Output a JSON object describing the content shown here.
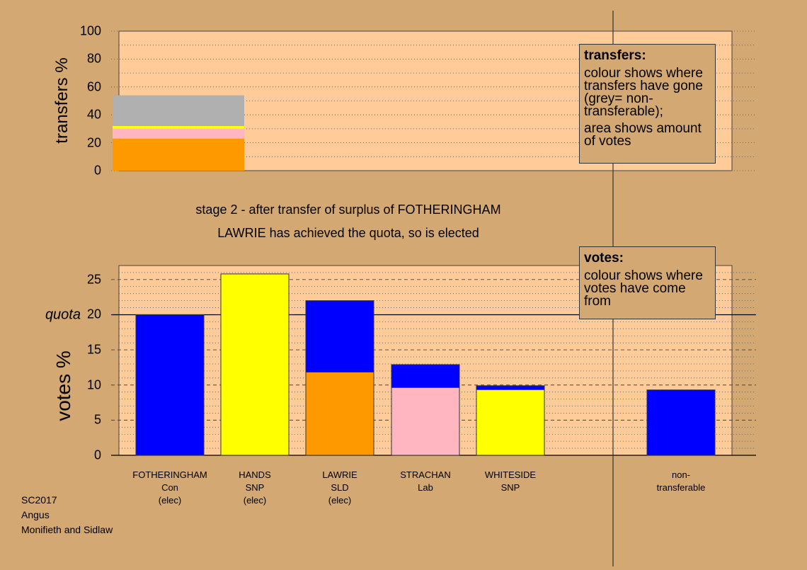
{
  "chart_data": [
    {
      "type": "bar",
      "stacked": true,
      "ylabel": "transfers %",
      "ylim": [
        0,
        100
      ],
      "yticks": [
        0,
        20,
        40,
        60,
        80,
        100
      ],
      "grid": "dotted",
      "bars": [
        {
          "segments": [
            {
              "value": 23,
              "color": "#ff9900"
            },
            {
              "value": 7,
              "color": "#ffb6c1"
            },
            {
              "value": 2,
              "color": "#ffff00"
            },
            {
              "value": 22,
              "color": "#b0b0b0"
            }
          ]
        }
      ],
      "legend": {
        "title": "transfers:",
        "lines": [
          "colour shows where transfers have gone (grey= non-transferable);",
          "area shows amount of votes"
        ],
        "placement": "top-right"
      }
    },
    {
      "type": "bar",
      "stacked": true,
      "ylabel": "votes %",
      "ylim": [
        0,
        27
      ],
      "yticks": [
        0,
        5,
        10,
        15,
        20,
        25
      ],
      "quota": 20,
      "quota_label": "quota",
      "grid": "dotted",
      "categories": [
        [
          "FOTHERINGHAM",
          "Con",
          "(elec)"
        ],
        [
          "HANDS",
          "SNP",
          "(elec)"
        ],
        [
          "LAWRIE",
          "SLD",
          "(elec)"
        ],
        [
          "STRACHAN",
          "Lab",
          ""
        ],
        [
          "WHITESIDE",
          "SNP",
          ""
        ],
        [
          "non-",
          "transferable",
          ""
        ]
      ],
      "bars": [
        {
          "segments": [
            {
              "value": 20.0,
              "color": "#0000ff"
            }
          ]
        },
        {
          "segments": [
            {
              "value": 25.8,
              "color": "#ffff00"
            }
          ]
        },
        {
          "segments": [
            {
              "value": 11.8,
              "color": "#ff9900"
            },
            {
              "value": 10.2,
              "color": "#0000ff"
            }
          ]
        },
        {
          "segments": [
            {
              "value": 9.6,
              "color": "#ffb6c1"
            },
            {
              "value": 3.3,
              "color": "#0000ff"
            }
          ]
        },
        {
          "segments": [
            {
              "value": 9.3,
              "color": "#ffff00"
            },
            {
              "value": 0.6,
              "color": "#0000ff"
            }
          ]
        },
        {
          "segments": [
            {
              "value": 9.3,
              "color": "#0000ff"
            }
          ]
        }
      ],
      "legend": {
        "title": "votes:",
        "lines": [
          "colour shows where votes have come from"
        ],
        "placement": "top-right"
      }
    }
  ],
  "stage_text": "stage 2 - after transfer of surplus of FOTHERINGHAM",
  "elected_text": "LAWRIE has achieved the quota, so is elected",
  "footer": [
    "SC2017",
    "Angus",
    "Monifieth and Sidlaw"
  ],
  "colors": {
    "background": "#d4a872",
    "plot_area": "#ffcc99"
  }
}
